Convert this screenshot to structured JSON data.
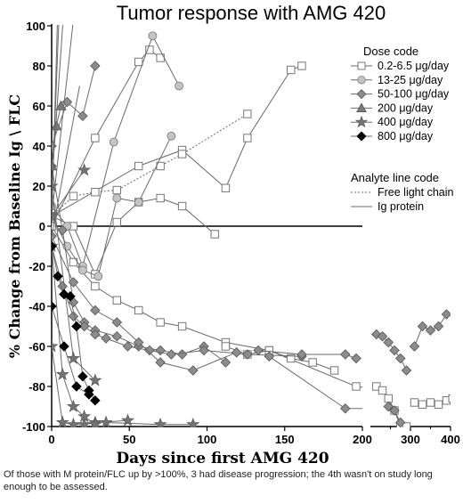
{
  "chart_data": {
    "type": "scatter",
    "title": "Tumor response with AMG 420",
    "xlabel": "Days since first AMG 420",
    "ylabel": "% Change from Baseline  Ig \\ FLC",
    "ylim": [
      -100,
      100
    ],
    "yticks": [
      "-100",
      "-80",
      "-60",
      "-40",
      "-20",
      "0",
      "20",
      "40",
      "60",
      "80",
      "100"
    ],
    "x_segments": [
      {
        "range": [
          0,
          200
        ],
        "ticks": [
          "0",
          "50",
          "100",
          "150",
          "200"
        ]
      },
      {
        "range": [
          200,
          400
        ],
        "ticks": [
          "300",
          "400"
        ]
      }
    ],
    "x_tick_values": [
      [
        0,
        50,
        100,
        150,
        200
      ],
      [
        300,
        400
      ]
    ],
    "reference_line_y": 0,
    "legend": {
      "title": "Dose code",
      "placement": "top-right",
      "entries": [
        {
          "label": "0.2-6.5 μg/day",
          "marker": "square-open",
          "color": "#8a8a8a"
        },
        {
          "label": "13-25 μg/day",
          "marker": "circle",
          "color": "#c4c4c4"
        },
        {
          "label": "50-100 μg/day",
          "marker": "diamond",
          "color": "#8c8c8c"
        },
        {
          "label": "200 μg/day",
          "marker": "triangle",
          "color": "#7a7a7a"
        },
        {
          "label": "400 μg/day",
          "marker": "star",
          "color": "#737373"
        },
        {
          "label": "800 μg/day",
          "marker": "diamond",
          "color": "#000000"
        }
      ]
    },
    "line_legend": {
      "title": "Analyte line code",
      "entries": [
        {
          "label": "Free light chain",
          "style": "dotted"
        },
        {
          "label": "Ig protein",
          "style": "solid"
        }
      ]
    },
    "series": [
      {
        "marker": "square-open",
        "color": "#8a8a8a",
        "line": "solid",
        "x": [
          0,
          14,
          28,
          42,
          56,
          70,
          84,
          105
        ],
        "y": [
          5,
          0,
          -24,
          2,
          12,
          14,
          10,
          -4
        ]
      },
      {
        "marker": "square-open",
        "color": "#8a8a8a",
        "line": "solid",
        "x": [
          0,
          14,
          28,
          42,
          56,
          70,
          84,
          112,
          140,
          196,
          203
        ],
        "y": [
          0,
          -18,
          -30,
          -37,
          -42,
          -48,
          -50,
          -58,
          -62,
          -80,
          -81
        ]
      },
      {
        "marker": "square-open",
        "color": "#8a8a8a",
        "line": "solid",
        "x": [
          0,
          28,
          56,
          63,
          70
        ],
        "y": [
          0,
          44,
          82,
          88,
          84
        ]
      },
      {
        "marker": "square-open",
        "color": "#8a8a8a",
        "line": "solid",
        "x": [
          0,
          56,
          84,
          112,
          126,
          154,
          161
        ],
        "y": [
          5,
          30,
          38,
          19,
          44,
          78,
          80
        ]
      },
      {
        "marker": "square-open",
        "color": "#8a8a8a",
        "line": "dotted",
        "x": [
          0,
          14,
          28,
          42,
          70,
          84,
          126
        ],
        "y": [
          5,
          15,
          17,
          18,
          30,
          36,
          56
        ]
      },
      {
        "marker": "square-open",
        "color": "#8a8a8a",
        "line": "solid",
        "x": [
          112,
          126,
          140,
          154,
          168,
          182
        ],
        "y": [
          -60,
          -64,
          -62,
          -66,
          -68,
          -72
        ]
      },
      {
        "marker": "circle",
        "color": "#c4c4c4",
        "line": "solid",
        "x": [
          0,
          10,
          20,
          40,
          65,
          82
        ],
        "y": [
          10,
          0,
          -20,
          42,
          95,
          70
        ]
      },
      {
        "marker": "circle",
        "color": "#c4c4c4",
        "line": "solid",
        "x": [
          0,
          10,
          20,
          30,
          42,
          56,
          77
        ],
        "y": [
          5,
          -10,
          -22,
          -25,
          14,
          12,
          45
        ]
      },
      {
        "marker": "diamond",
        "color": "#8c8c8c",
        "line": "solid",
        "x": [
          0,
          7,
          14,
          21,
          28,
          42,
          56,
          70,
          84,
          98,
          112
        ],
        "y": [
          30,
          -2,
          -38,
          -48,
          -52,
          -55,
          -60,
          -62,
          -64,
          -60,
          -68
        ]
      },
      {
        "marker": "diamond",
        "color": "#8c8c8c",
        "line": "solid",
        "x": [
          0,
          7,
          14,
          21,
          28,
          35,
          49,
          63,
          77,
          98,
          126,
          161
        ],
        "y": [
          -10,
          -30,
          -45,
          -50,
          -54,
          -56,
          -60,
          -62,
          -64,
          -62,
          -64,
          -65
        ]
      },
      {
        "marker": "diamond",
        "color": "#8c8c8c",
        "line": "solid",
        "x": [
          0,
          14,
          28,
          42,
          56,
          70,
          91,
          119
        ],
        "y": [
          -5,
          -28,
          -42,
          -48,
          -58,
          -68,
          -72,
          -63
        ]
      },
      {
        "marker": "diamond",
        "color": "#8c8c8c",
        "line": "solid",
        "x": [
          0,
          10,
          20,
          28
        ],
        "y": [
          40,
          62,
          55,
          80
        ]
      },
      {
        "marker": "diamond",
        "color": "#8c8c8c",
        "line": "solid",
        "x": [
          133,
          161,
          189,
          196
        ],
        "y": [
          -62,
          -64,
          -64,
          -66
        ]
      },
      {
        "marker": "diamond",
        "color": "#8c8c8c",
        "line": "solid",
        "x": [
          140,
          189,
          210
        ],
        "y": [
          -65,
          -91,
          -91
        ]
      },
      {
        "marker": "triangle",
        "color": "#7a7a7a",
        "line": "solid",
        "x": [
          0,
          3,
          6
        ],
        "y": [
          30,
          50,
          60
        ]
      },
      {
        "marker": "star",
        "color": "#737373",
        "line": "solid",
        "x": [
          0,
          7,
          14,
          21,
          28,
          49
        ],
        "y": [
          -60,
          -98,
          -99,
          -99,
          -98,
          -97
        ]
      },
      {
        "marker": "star",
        "color": "#737373",
        "line": "solid",
        "x": [
          0,
          7,
          14,
          21,
          28
        ],
        "y": [
          -10,
          -74,
          -90,
          -95,
          -99
        ]
      },
      {
        "marker": "star",
        "color": "#737373",
        "line": "solid",
        "x": [
          0,
          14,
          28
        ],
        "y": [
          20,
          -66,
          -77
        ]
      },
      {
        "marker": "star",
        "color": "#737373",
        "line": "solid",
        "x": [
          0,
          21
        ],
        "y": [
          5,
          28
        ]
      },
      {
        "marker": "star",
        "color": "#737373",
        "line": "solid",
        "x": [
          35,
          70,
          91
        ],
        "y": [
          -98,
          -99,
          -99
        ]
      },
      {
        "marker": "diamond",
        "color": "#000000",
        "line": "solid",
        "x": [
          0,
          4,
          8,
          12,
          16,
          20,
          24,
          28
        ],
        "y": [
          -10,
          -25,
          -34,
          -35,
          -50,
          -75,
          -82,
          -87
        ]
      },
      {
        "marker": "diamond",
        "color": "#000000",
        "line": "solid",
        "x": [
          0,
          8,
          16,
          24
        ],
        "y": [
          -40,
          -60,
          -80,
          -84
        ]
      },
      {
        "marker": "square-open",
        "color": "#8a8a8a",
        "line": "solid",
        "x": [
          215,
          230,
          245,
          260,
          275,
          290
        ],
        "y": [
          -80,
          -82,
          -86,
          -92,
          -100,
          -100
        ]
      },
      {
        "marker": "square-open",
        "color": "#8a8a8a",
        "line": "solid",
        "x": [
          310,
          330,
          350,
          370,
          390,
          405
        ],
        "y": [
          -88,
          -89,
          -88,
          -89,
          -87,
          -86
        ]
      },
      {
        "marker": "diamond",
        "color": "#8c8c8c",
        "line": "solid",
        "x": [
          215,
          230,
          245,
          260,
          275,
          290
        ],
        "y": [
          -54,
          -55,
          -58,
          -62,
          -66,
          -72
        ]
      },
      {
        "marker": "diamond",
        "color": "#8c8c8c",
        "line": "solid",
        "x": [
          310,
          330,
          350,
          370,
          390
        ],
        "y": [
          -60,
          -50,
          -52,
          -50,
          -44
        ]
      },
      {
        "marker": "diamond",
        "color": "#8c8c8c",
        "line": "solid",
        "x": [
          245,
          260,
          275
        ],
        "y": [
          -90,
          -92,
          -98
        ]
      }
    ]
  },
  "caption": "Of those with M protein/FLC up by >100%, 3 had disease progression; the 4th wasn't on study long enough to be assessed."
}
